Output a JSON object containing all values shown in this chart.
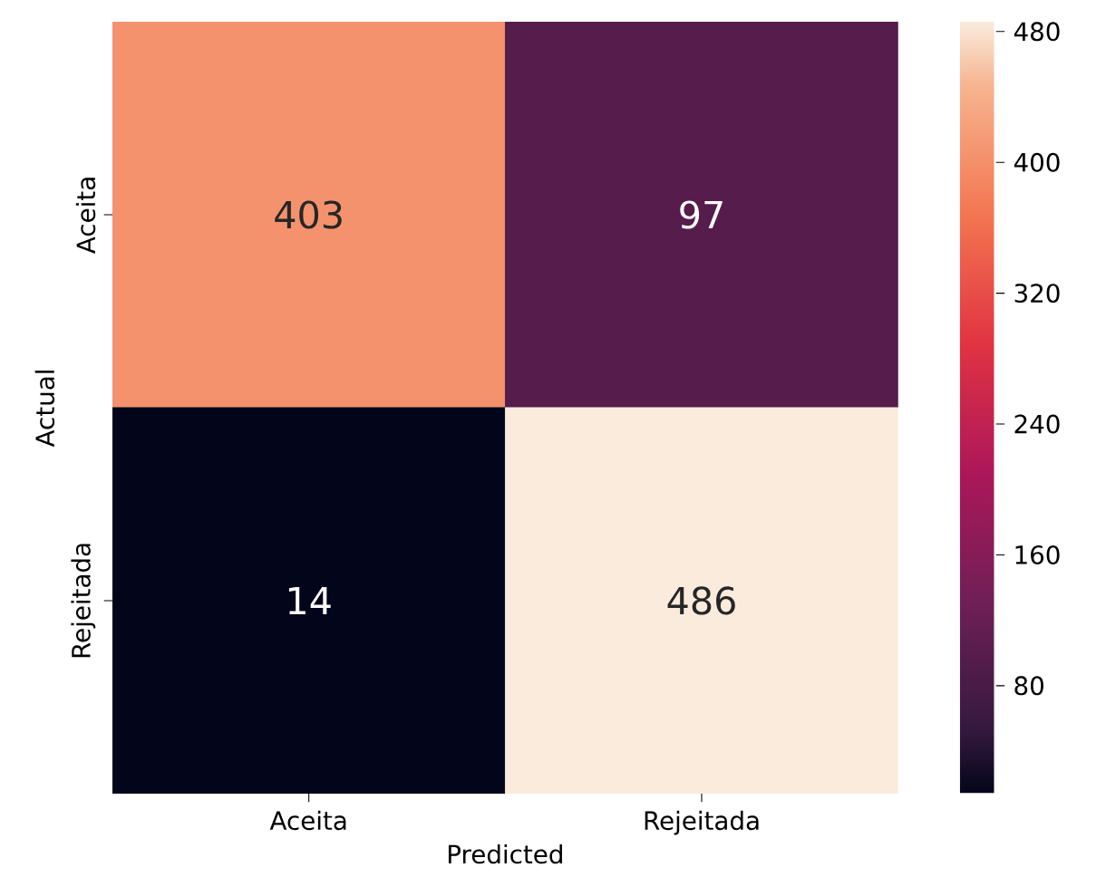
{
  "chart_data": {
    "type": "heatmap",
    "xlabel": "Predicted",
    "ylabel": "Actual",
    "categories": [
      "Aceita",
      "Rejeitada"
    ],
    "y_categories": [
      "Aceita",
      "Rejeitada"
    ],
    "cells": [
      [
        403,
        97
      ],
      [
        14,
        486
      ]
    ],
    "data_labels": true,
    "clim": [
      14,
      486
    ],
    "cticks": [
      80,
      160,
      240,
      320,
      400,
      480
    ]
  }
}
